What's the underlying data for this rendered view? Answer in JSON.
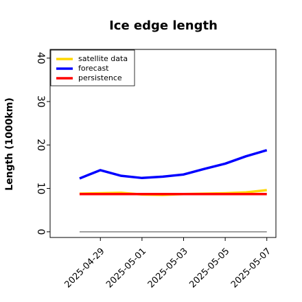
{
  "chart_data": {
    "type": "line",
    "title": "Ice edge length",
    "ylabel": "Length (1000km)",
    "x": [
      "2025-04-28",
      "2025-04-29",
      "2025-04-30",
      "2025-05-01",
      "2025-05-02",
      "2025-05-03",
      "2025-05-04",
      "2025-05-05",
      "2025-05-06",
      "2025-05-07"
    ],
    "series": [
      {
        "name": "satellite data",
        "color": "#ffd700",
        "values": [
          8.8,
          8.9,
          9.0,
          8.6,
          8.5,
          8.7,
          8.8,
          8.9,
          9.1,
          9.6
        ]
      },
      {
        "name": "forecast",
        "color": "#0000ff",
        "values": [
          12.3,
          14.2,
          12.9,
          12.4,
          12.7,
          13.2,
          14.5,
          15.7,
          17.4,
          18.8
        ]
      },
      {
        "name": "persistence",
        "color": "#ff0000",
        "values": [
          8.7,
          8.7,
          8.7,
          8.7,
          8.7,
          8.7,
          8.7,
          8.7,
          8.7,
          8.7
        ]
      }
    ],
    "reference_line": {
      "value": 0,
      "color": "#808080"
    },
    "xlim": [
      "2025-04-26T14:00",
      "2025-05-07T10:30"
    ],
    "xticks": [
      "2025-04-29",
      "2025-05-01",
      "2025-05-03",
      "2025-05-05",
      "2025-05-07"
    ],
    "xtick_label_colors": [
      "#228b22",
      "#000000",
      "#000000",
      "#000000",
      "#000000"
    ],
    "ylim": [
      -1.3,
      42
    ],
    "yticks": [
      0,
      10,
      20,
      30,
      40
    ],
    "grid": false,
    "legend": "upper left"
  }
}
